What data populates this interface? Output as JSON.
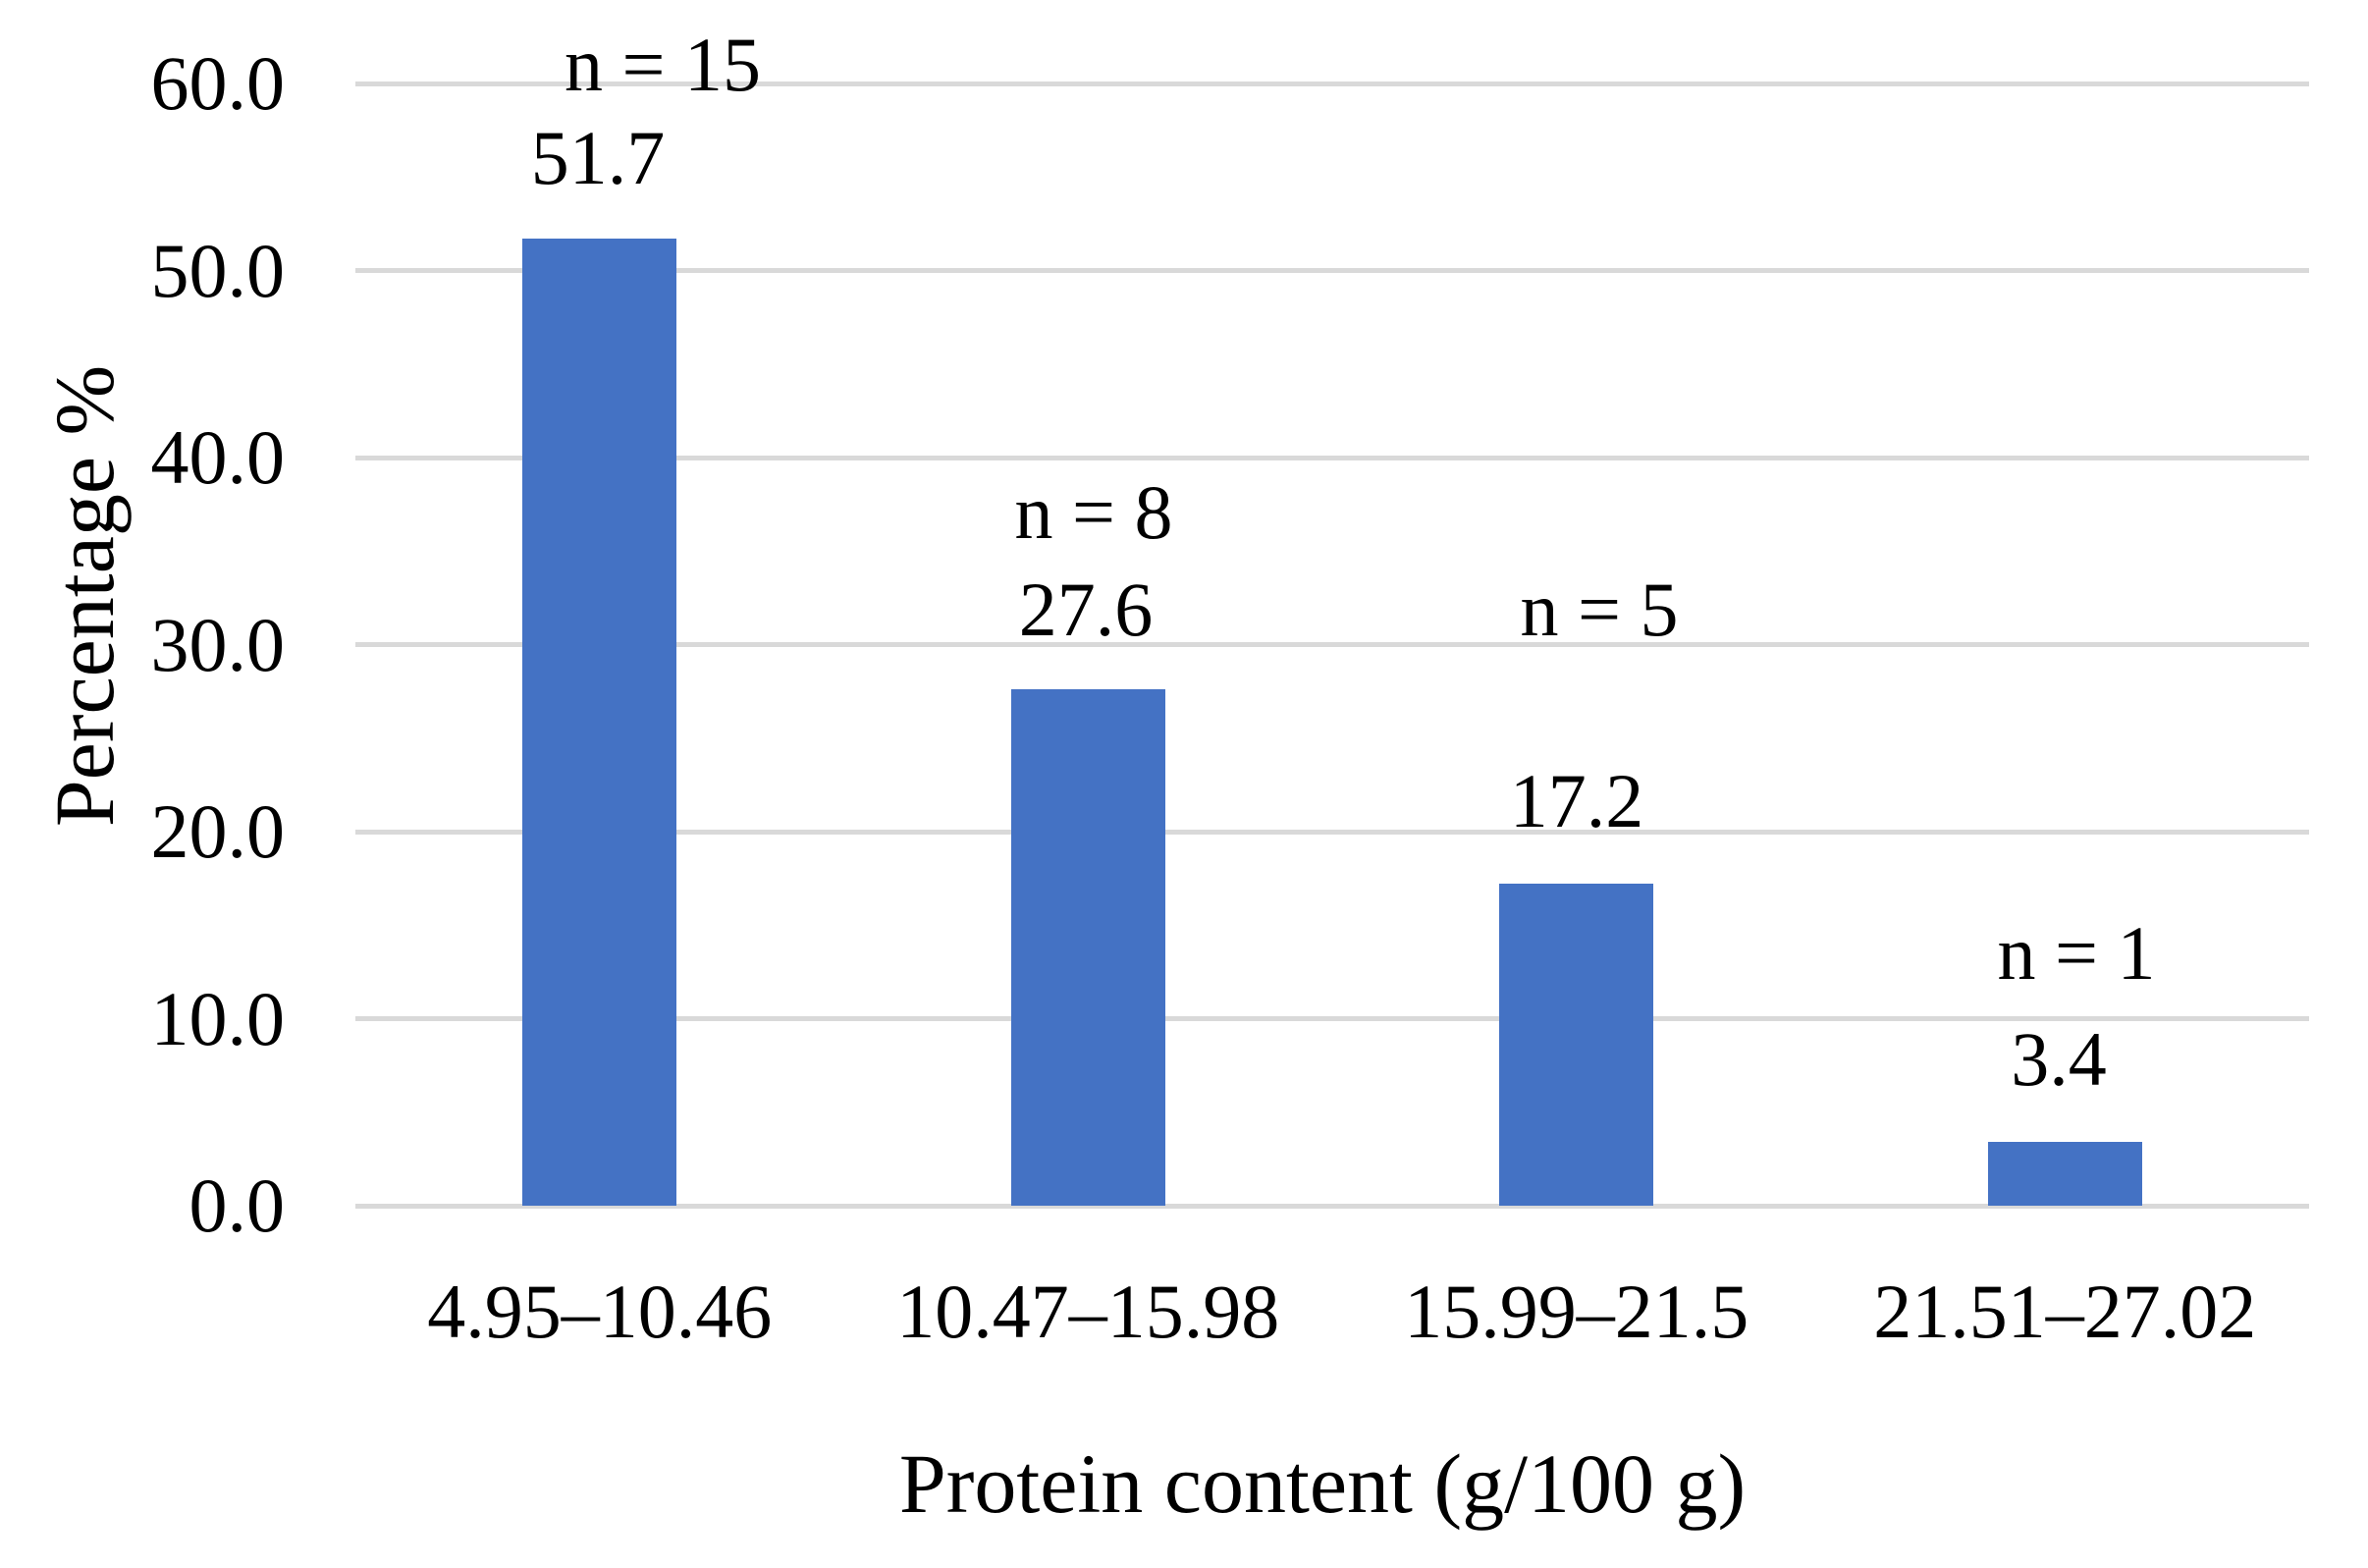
{
  "chart_data": {
    "type": "bar",
    "title": "",
    "xlabel": "Protein content (g/100 g)",
    "ylabel": "Percentage %",
    "categories": [
      "4.95–10.46",
      "10.47–15.98",
      "15.99–21.5",
      "21.51–27.02"
    ],
    "values": [
      51.7,
      27.6,
      17.2,
      3.4
    ],
    "counts": [
      15,
      8,
      5,
      1
    ],
    "value_labels": [
      "51.7",
      "27.6",
      "17.2",
      "3.4"
    ],
    "count_labels": [
      "n = 15",
      "n = 8",
      "n = 5",
      "n = 1"
    ],
    "y_tick_labels": [
      "60.0",
      "50.0",
      "40.0",
      "30.0",
      "20.0",
      "10.0",
      "0.0"
    ],
    "y_tick_values": [
      60,
      50,
      40,
      30,
      20,
      10,
      0
    ],
    "ylim": [
      0,
      60
    ],
    "grid": true,
    "legend": "none",
    "colors": {
      "bar": "#4472C4",
      "gridline": "#D9D9D9",
      "text": "#000000",
      "background": "#FFFFFF"
    }
  }
}
